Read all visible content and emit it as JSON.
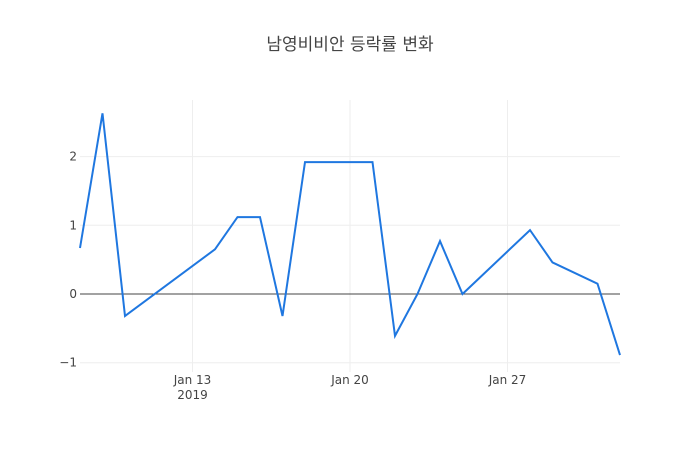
{
  "chart_data": {
    "type": "line",
    "title": "남영비비안 등락률 변화",
    "xlabel": "",
    "ylabel": "",
    "x": [
      "2019-01-08",
      "2019-01-09",
      "2019-01-10",
      "2019-01-14",
      "2019-01-15",
      "2019-01-16",
      "2019-01-17",
      "2019-01-18",
      "2019-01-21",
      "2019-01-22",
      "2019-01-23",
      "2019-01-24",
      "2019-01-25",
      "2019-01-28",
      "2019-01-29",
      "2019-01-31",
      "2019-02-01"
    ],
    "series": [
      {
        "name": "등락률",
        "color": "#1f77e0",
        "values": [
          0.67,
          2.63,
          -0.32,
          0.65,
          1.12,
          1.12,
          -0.32,
          1.92,
          1.92,
          -0.61,
          0.0,
          0.77,
          0.0,
          0.93,
          0.46,
          0.15,
          -0.89
        ]
      }
    ],
    "xticks": [
      {
        "date": "2019-01-13",
        "label": "Jan 13",
        "sublabel": "2019"
      },
      {
        "date": "2019-01-20",
        "label": "Jan 20",
        "sublabel": ""
      },
      {
        "date": "2019-01-27",
        "label": "Jan 27",
        "sublabel": ""
      }
    ],
    "yticks": [
      {
        "value": 2,
        "label": "2"
      },
      {
        "value": 1,
        "label": "1"
      },
      {
        "value": 0,
        "label": "0"
      },
      {
        "value": -1,
        "label": "−1"
      }
    ],
    "xlim": [
      "2019-01-08",
      "2019-02-01"
    ],
    "ylim": [
      -1.1,
      2.85
    ],
    "grid": true,
    "zeroline": true,
    "legend": "none"
  }
}
